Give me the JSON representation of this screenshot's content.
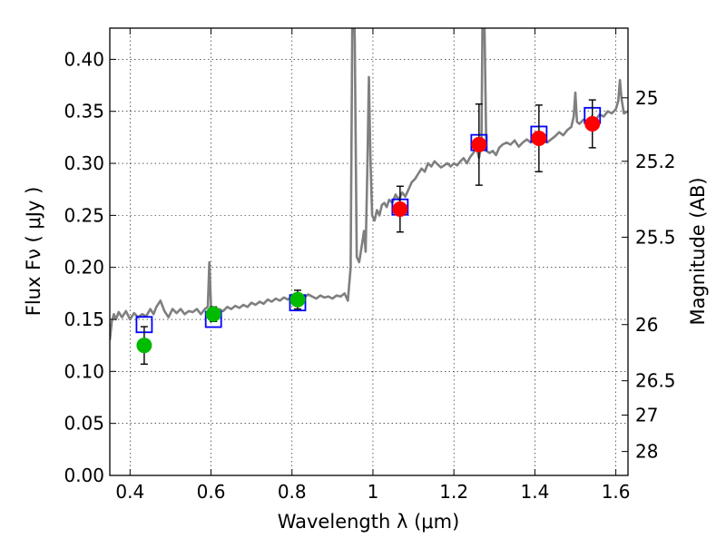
{
  "chart_data": {
    "type": "scatter",
    "xlabel": "Wavelength  λ (μm)",
    "ylabel": "Flux  Fν  ( μJy )",
    "y2label": "Magnitude (AB)",
    "xlim": [
      0.35,
      1.63
    ],
    "ylim": [
      0.0,
      0.43
    ],
    "grid": true,
    "x_ticks": [
      0.4,
      0.6,
      0.8,
      1.0,
      1.2,
      1.4,
      1.6
    ],
    "x_tick_labels": [
      "0.4",
      "0.6",
      "0.8",
      "1",
      "1.2",
      "1.4",
      "1.6"
    ],
    "y_ticks": [
      0.0,
      0.05,
      0.1,
      0.15,
      0.2,
      0.25,
      0.3,
      0.35,
      0.4
    ],
    "y_tick_labels": [
      "0.00",
      "0.05",
      "0.10",
      "0.15",
      "0.20",
      "0.25",
      "0.30",
      "0.35",
      "0.40"
    ],
    "y2_ticks": [
      {
        "label": "25",
        "flux": 0.363
      },
      {
        "label": "25.2",
        "flux": 0.302
      },
      {
        "label": "25.5",
        "flux": 0.229
      },
      {
        "label": "26",
        "flux": 0.145
      },
      {
        "label": "26.5",
        "flux": 0.091
      },
      {
        "label": "27",
        "flux": 0.058
      },
      {
        "label": "28",
        "flux": 0.023
      }
    ],
    "model_spectrum": {
      "color": "#7f7f7f",
      "points": [
        [
          0.35,
          0.13
        ],
        [
          0.355,
          0.148
        ],
        [
          0.36,
          0.155
        ],
        [
          0.365,
          0.15
        ],
        [
          0.372,
          0.157
        ],
        [
          0.38,
          0.152
        ],
        [
          0.39,
          0.158
        ],
        [
          0.4,
          0.15
        ],
        [
          0.41,
          0.156
        ],
        [
          0.42,
          0.152
        ],
        [
          0.43,
          0.155
        ],
        [
          0.44,
          0.153
        ],
        [
          0.45,
          0.16
        ],
        [
          0.458,
          0.155
        ],
        [
          0.465,
          0.162
        ],
        [
          0.475,
          0.168
        ],
        [
          0.485,
          0.158
        ],
        [
          0.495,
          0.152
        ],
        [
          0.505,
          0.16
        ],
        [
          0.515,
          0.156
        ],
        [
          0.525,
          0.16
        ],
        [
          0.535,
          0.155
        ],
        [
          0.545,
          0.158
        ],
        [
          0.555,
          0.157
        ],
        [
          0.565,
          0.16
        ],
        [
          0.575,
          0.155
        ],
        [
          0.585,
          0.16
        ],
        [
          0.592,
          0.162
        ],
        [
          0.596,
          0.205
        ],
        [
          0.6,
          0.163
        ],
        [
          0.61,
          0.158
        ],
        [
          0.62,
          0.16
        ],
        [
          0.63,
          0.158
        ],
        [
          0.64,
          0.162
        ],
        [
          0.65,
          0.16
        ],
        [
          0.66,
          0.163
        ],
        [
          0.67,
          0.161
        ],
        [
          0.68,
          0.164
        ],
        [
          0.69,
          0.162
        ],
        [
          0.7,
          0.166
        ],
        [
          0.71,
          0.164
        ],
        [
          0.72,
          0.167
        ],
        [
          0.73,
          0.165
        ],
        [
          0.74,
          0.169
        ],
        [
          0.75,
          0.167
        ],
        [
          0.76,
          0.17
        ],
        [
          0.77,
          0.168
        ],
        [
          0.78,
          0.171
        ],
        [
          0.79,
          0.169
        ],
        [
          0.8,
          0.172
        ],
        [
          0.81,
          0.17
        ],
        [
          0.82,
          0.173
        ],
        [
          0.83,
          0.171
        ],
        [
          0.84,
          0.174
        ],
        [
          0.85,
          0.172
        ],
        [
          0.86,
          0.17
        ],
        [
          0.87,
          0.173
        ],
        [
          0.88,
          0.171
        ],
        [
          0.89,
          0.172
        ],
        [
          0.9,
          0.17
        ],
        [
          0.91,
          0.173
        ],
        [
          0.92,
          0.172
        ],
        [
          0.93,
          0.175
        ],
        [
          0.938,
          0.168
        ],
        [
          0.945,
          0.2
        ],
        [
          0.95,
          0.5
        ],
        [
          0.955,
          0.42
        ],
        [
          0.96,
          0.21
        ],
        [
          0.966,
          0.205
        ],
        [
          0.972,
          0.22
        ],
        [
          0.978,
          0.235
        ],
        [
          0.982,
          0.215
        ],
        [
          0.986,
          0.29
        ],
        [
          0.99,
          0.383
        ],
        [
          0.994,
          0.3
        ],
        [
          0.998,
          0.25
        ],
        [
          1.004,
          0.245
        ],
        [
          1.01,
          0.255
        ],
        [
          1.016,
          0.25
        ],
        [
          1.022,
          0.26
        ],
        [
          1.028,
          0.262
        ],
        [
          1.034,
          0.258
        ],
        [
          1.04,
          0.265
        ],
        [
          1.048,
          0.262
        ],
        [
          1.056,
          0.27
        ],
        [
          1.064,
          0.265
        ],
        [
          1.072,
          0.272
        ],
        [
          1.08,
          0.268
        ],
        [
          1.088,
          0.275
        ],
        [
          1.096,
          0.282
        ],
        [
          1.104,
          0.285
        ],
        [
          1.112,
          0.29
        ],
        [
          1.12,
          0.295
        ],
        [
          1.128,
          0.292
        ],
        [
          1.136,
          0.3
        ],
        [
          1.144,
          0.297
        ],
        [
          1.152,
          0.302
        ],
        [
          1.16,
          0.299
        ],
        [
          1.168,
          0.296
        ],
        [
          1.176,
          0.298
        ],
        [
          1.184,
          0.3
        ],
        [
          1.192,
          0.297
        ],
        [
          1.2,
          0.3
        ],
        [
          1.208,
          0.298
        ],
        [
          1.216,
          0.302
        ],
        [
          1.224,
          0.305
        ],
        [
          1.232,
          0.3
        ],
        [
          1.24,
          0.306
        ],
        [
          1.248,
          0.31
        ],
        [
          1.256,
          0.315
        ],
        [
          1.262,
          0.305
        ],
        [
          1.268,
          0.318
        ],
        [
          1.272,
          0.5
        ],
        [
          1.276,
          0.42
        ],
        [
          1.28,
          0.312
        ],
        [
          1.288,
          0.31
        ],
        [
          1.296,
          0.312
        ],
        [
          1.304,
          0.308
        ],
        [
          1.312,
          0.315
        ],
        [
          1.32,
          0.318
        ],
        [
          1.33,
          0.32
        ],
        [
          1.34,
          0.318
        ],
        [
          1.35,
          0.322
        ],
        [
          1.36,
          0.316
        ],
        [
          1.37,
          0.32
        ],
        [
          1.38,
          0.323
        ],
        [
          1.39,
          0.32
        ],
        [
          1.4,
          0.325
        ],
        [
          1.41,
          0.322
        ],
        [
          1.42,
          0.327
        ],
        [
          1.43,
          0.32
        ],
        [
          1.44,
          0.323
        ],
        [
          1.45,
          0.326
        ],
        [
          1.46,
          0.33
        ],
        [
          1.47,
          0.327
        ],
        [
          1.48,
          0.332
        ],
        [
          1.49,
          0.335
        ],
        [
          1.496,
          0.345
        ],
        [
          1.5,
          0.368
        ],
        [
          1.504,
          0.34
        ],
        [
          1.51,
          0.338
        ],
        [
          1.52,
          0.342
        ],
        [
          1.53,
          0.34
        ],
        [
          1.54,
          0.345
        ],
        [
          1.55,
          0.342
        ],
        [
          1.56,
          0.347
        ],
        [
          1.57,
          0.345
        ],
        [
          1.58,
          0.35
        ],
        [
          1.59,
          0.348
        ],
        [
          1.6,
          0.352
        ],
        [
          1.606,
          0.36
        ],
        [
          1.61,
          0.38
        ],
        [
          1.614,
          0.362
        ],
        [
          1.62,
          0.348
        ],
        [
          1.63,
          0.35
        ]
      ]
    },
    "model_bands": {
      "color": "#0000ff",
      "marker": "open-square",
      "points": [
        {
          "x": 0.435,
          "y": 0.145
        },
        {
          "x": 0.606,
          "y": 0.15
        },
        {
          "x": 0.814,
          "y": 0.166
        },
        {
          "x": 1.067,
          "y": 0.258
        },
        {
          "x": 1.262,
          "y": 0.32
        },
        {
          "x": 1.41,
          "y": 0.328
        },
        {
          "x": 1.542,
          "y": 0.346
        }
      ]
    },
    "observed_optical": {
      "color": "#00bb00",
      "points": [
        {
          "x": 0.435,
          "y": 0.125,
          "err": 0.018
        },
        {
          "x": 0.606,
          "y": 0.155,
          "err": 0.007
        },
        {
          "x": 0.814,
          "y": 0.169,
          "err": 0.009
        }
      ]
    },
    "observed_nir": {
      "color": "#ff0000",
      "points": [
        {
          "x": 1.067,
          "y": 0.256,
          "err": 0.022
        },
        {
          "x": 1.262,
          "y": 0.318,
          "err": 0.039
        },
        {
          "x": 1.41,
          "y": 0.324,
          "err": 0.032
        },
        {
          "x": 1.542,
          "y": 0.338,
          "err": 0.023
        }
      ]
    }
  }
}
